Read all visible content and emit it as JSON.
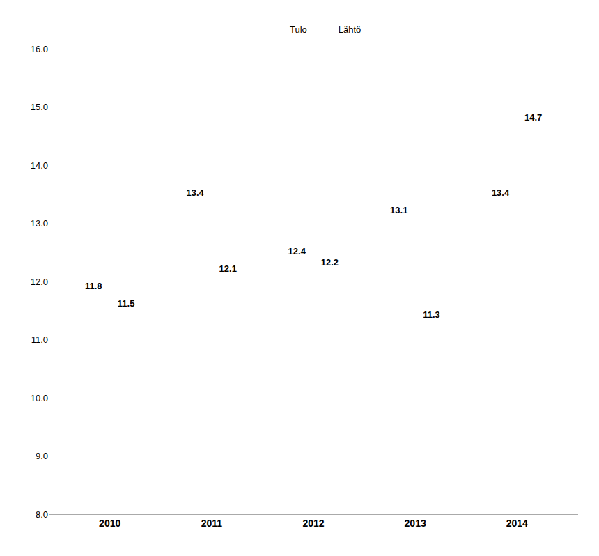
{
  "chart_data": {
    "type": "bar",
    "categories": [
      "2010",
      "2011",
      "2012",
      "2013",
      "2014"
    ],
    "series": [
      {
        "name": "Tulo",
        "color": "#6fa8d0",
        "values": [
          11.8,
          13.4,
          12.4,
          13.1,
          13.4
        ]
      },
      {
        "name": "Lähtö",
        "color": "#c0504d",
        "values": [
          11.5,
          12.1,
          12.2,
          11.3,
          14.7
        ]
      }
    ],
    "ylim": [
      8.0,
      16.0
    ],
    "yticks": [
      {
        "value": 8.0,
        "label": "8.0"
      },
      {
        "value": 9.0,
        "label": "9.0"
      },
      {
        "value": 10.0,
        "label": "10.0"
      },
      {
        "value": 11.0,
        "label": "11.0"
      },
      {
        "value": 12.0,
        "label": "12.0"
      },
      {
        "value": 13.0,
        "label": "13.0"
      },
      {
        "value": 14.0,
        "label": "14.0"
      },
      {
        "value": 15.0,
        "label": "15.0"
      },
      {
        "value": 16.0,
        "label": "16.0"
      }
    ],
    "grid": false,
    "legend": "upper center",
    "data_labels": true
  }
}
